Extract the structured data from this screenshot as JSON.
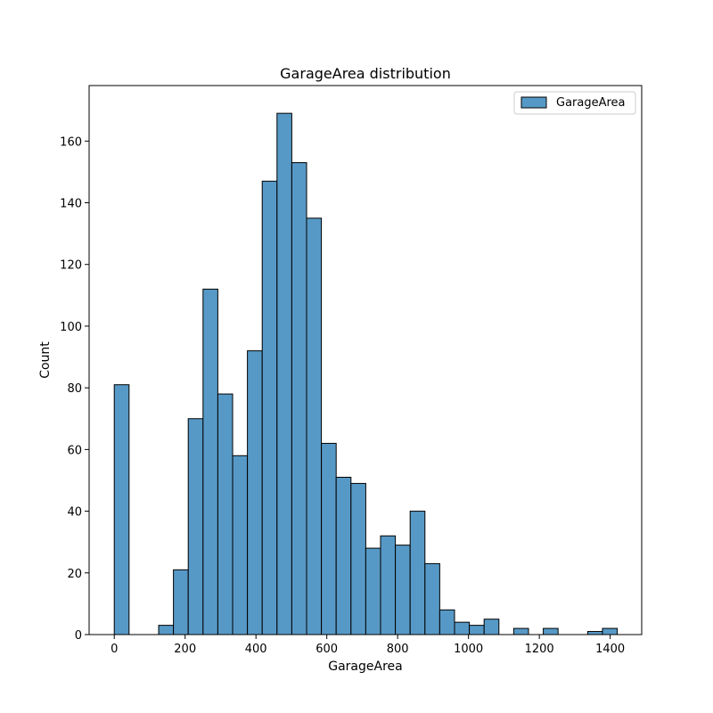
{
  "chart_data": {
    "type": "bar",
    "title": "GarageArea distribution",
    "xlabel": "GarageArea",
    "ylabel": "Count",
    "xlim": [
      -71,
      1489
    ],
    "ylim": [
      0,
      178
    ],
    "xticks": [
      0,
      200,
      400,
      600,
      800,
      1000,
      1200,
      1400
    ],
    "yticks": [
      0,
      20,
      40,
      60,
      80,
      100,
      120,
      140,
      160
    ],
    "bin_width": 41.76,
    "legend": {
      "label": "GarageArea",
      "position": "top-right"
    },
    "colors": {
      "bar_fill": "#5799c6",
      "bar_edge": "#000000"
    },
    "series": [
      {
        "name": "GarageArea",
        "bins": [
          {
            "x0": 0.0,
            "count": 81
          },
          {
            "x0": 41.76,
            "count": 0
          },
          {
            "x0": 83.53,
            "count": 0
          },
          {
            "x0": 125.29,
            "count": 3
          },
          {
            "x0": 167.06,
            "count": 21
          },
          {
            "x0": 208.82,
            "count": 70
          },
          {
            "x0": 250.59,
            "count": 112
          },
          {
            "x0": 292.35,
            "count": 78
          },
          {
            "x0": 334.12,
            "count": 58
          },
          {
            "x0": 375.88,
            "count": 92
          },
          {
            "x0": 417.65,
            "count": 147
          },
          {
            "x0": 459.41,
            "count": 169
          },
          {
            "x0": 501.18,
            "count": 153
          },
          {
            "x0": 542.94,
            "count": 135
          },
          {
            "x0": 584.71,
            "count": 62
          },
          {
            "x0": 626.47,
            "count": 51
          },
          {
            "x0": 668.24,
            "count": 49
          },
          {
            "x0": 710.0,
            "count": 28
          },
          {
            "x0": 751.76,
            "count": 32
          },
          {
            "x0": 793.53,
            "count": 29
          },
          {
            "x0": 835.29,
            "count": 40
          },
          {
            "x0": 877.06,
            "count": 23
          },
          {
            "x0": 918.82,
            "count": 8
          },
          {
            "x0": 960.59,
            "count": 4
          },
          {
            "x0": 1002.35,
            "count": 3
          },
          {
            "x0": 1044.12,
            "count": 5
          },
          {
            "x0": 1085.88,
            "count": 0
          },
          {
            "x0": 1127.65,
            "count": 2
          },
          {
            "x0": 1169.41,
            "count": 0
          },
          {
            "x0": 1211.18,
            "count": 2
          },
          {
            "x0": 1252.94,
            "count": 0
          },
          {
            "x0": 1294.71,
            "count": 0
          },
          {
            "x0": 1336.47,
            "count": 1
          },
          {
            "x0": 1378.24,
            "count": 2
          }
        ]
      }
    ]
  }
}
